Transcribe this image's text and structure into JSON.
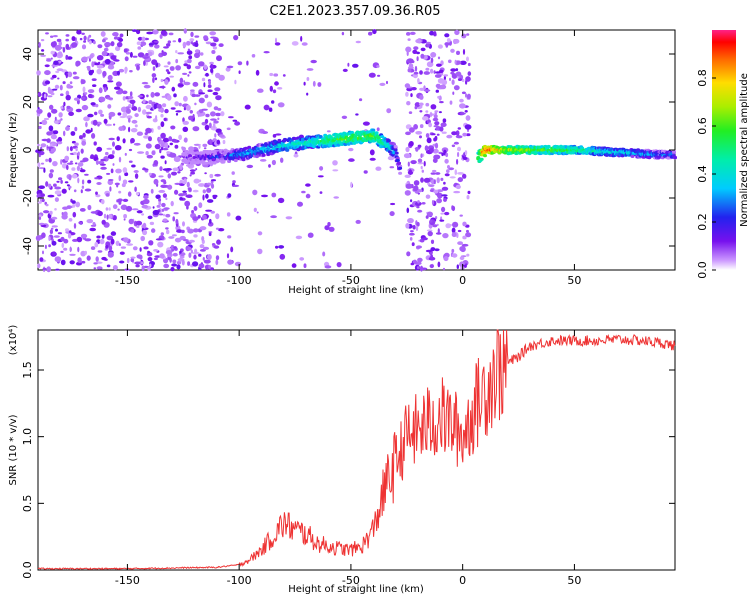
{
  "title": "C2E1.2023.357.09.36.R05",
  "chart_data": [
    {
      "type": "heatmap",
      "xlabel": "Height of straight line (km)",
      "ylabel": "Frequency (Hz)",
      "xlim": [
        -190,
        95
      ],
      "ylim": [
        -50,
        50
      ],
      "x_ticks": [
        "-150",
        "-100",
        "-50",
        "0",
        "50"
      ],
      "y_ticks": [
        "-40",
        "-20",
        "0",
        "20",
        "40"
      ],
      "colorbar": {
        "label": "Normalized spectral amplitude",
        "range": [
          0,
          1
        ],
        "ticks": [
          "0.0",
          "0.2",
          "0.4",
          "0.6",
          "0.8"
        ]
      },
      "signal_track": {
        "x": [
          -125,
          -110,
          -100,
          -90,
          -80,
          -70,
          -60,
          -50,
          -40,
          -35,
          -30,
          -28,
          7,
          10,
          20,
          30,
          40,
          50,
          60,
          70,
          80,
          90,
          95
        ],
        "freq": [
          -3,
          -3,
          -2,
          0,
          2,
          3,
          4,
          5,
          6,
          3,
          -1,
          -8,
          -3,
          0,
          0,
          0,
          0,
          0,
          -0.5,
          -1,
          -1.5,
          -2,
          -2
        ],
        "amplitude": [
          0.1,
          0.2,
          0.3,
          0.35,
          0.4,
          0.45,
          0.55,
          0.6,
          0.6,
          0.5,
          0.3,
          0.2,
          0.6,
          0.9,
          0.7,
          0.65,
          0.6,
          0.55,
          0.45,
          0.4,
          0.35,
          0.3,
          0.3
        ]
      }
    },
    {
      "type": "line",
      "xlabel": "Height of straight line (km)",
      "ylabel": "SNR (10 * v/v)",
      "yexponent_label": "(x10⁴)",
      "xlim": [
        -190,
        95
      ],
      "ylim": [
        0,
        1.8
      ],
      "x_ticks": [
        "-150",
        "-100",
        "-50",
        "0",
        "50"
      ],
      "y_ticks": [
        "0.0",
        "0.5",
        "1.0",
        "1.5"
      ],
      "color": "#ee3333",
      "series": [
        {
          "x": [
            -190,
            -150,
            -110,
            -100,
            -95,
            -90,
            -85,
            -80,
            -75,
            -70,
            -65,
            -60,
            -55,
            -50,
            -45,
            -40,
            -35,
            -30,
            -25,
            -20,
            -15,
            -10,
            -5,
            0,
            5,
            10,
            15,
            20,
            25,
            30,
            40,
            50,
            60,
            70,
            80,
            90,
            95
          ],
          "y": [
            0.01,
            0.01,
            0.02,
            0.04,
            0.08,
            0.15,
            0.25,
            0.35,
            0.3,
            0.27,
            0.2,
            0.18,
            0.16,
            0.15,
            0.18,
            0.3,
            0.6,
            0.8,
            1.0,
            1.05,
            1.1,
            1.15,
            1.1,
            1.0,
            1.2,
            1.35,
            1.5,
            1.55,
            1.6,
            1.68,
            1.72,
            1.72,
            1.72,
            1.73,
            1.72,
            1.7,
            1.68
          ]
        }
      ]
    }
  ]
}
